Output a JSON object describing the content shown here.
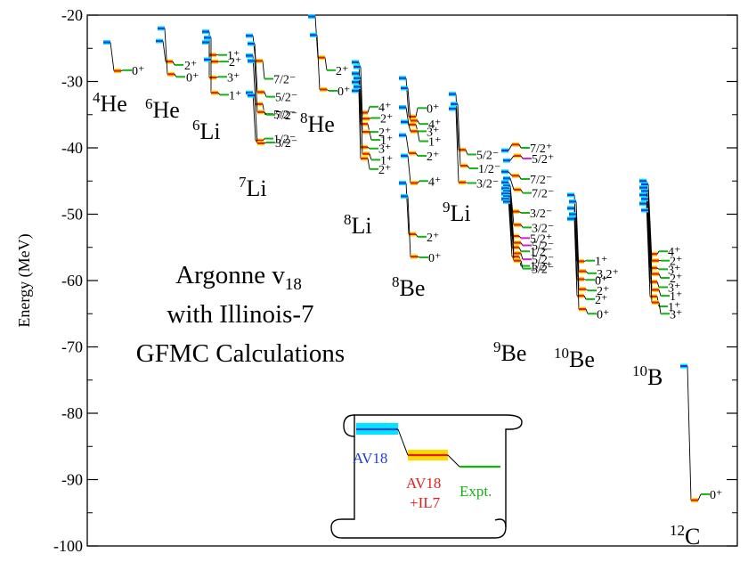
{
  "chart_data": {
    "type": "scatter",
    "title": "",
    "ylabel": "Energy (MeV)",
    "xlabel": "",
    "ylim": [
      -100,
      -20
    ],
    "yticks": [
      -20,
      -30,
      -40,
      -50,
      -60,
      -70,
      -80,
      -90,
      -100
    ],
    "ytick_labels": [
      "-20",
      "-30",
      "-40",
      "-50",
      "-60",
      "-70",
      "-80",
      "-90",
      "-100"
    ],
    "annotation": {
      "line1": "Argonne v",
      "line1_sub": "18",
      "line2": "with Illinois-7",
      "line3": "GFMC Calculations"
    },
    "legend": {
      "av18": "AV18",
      "av18il7_line1": "AV18",
      "av18il7_line2": "+IL7",
      "expt": "Expt."
    },
    "colors": {
      "av18": "#1f3fd8",
      "av18_band": "#00e5ff",
      "av18il7": "#e0201b",
      "av18il7_band": "#ffd800",
      "expt": "#13b313",
      "expt_alt": "#d21fd2",
      "connector": "#000000"
    },
    "nuclei": [
      {
        "name": "He",
        "A": "4",
        "slot": 0,
        "levels": [
          {
            "av18": -24.1,
            "il7": -28.4,
            "expt": -28.3,
            "label": "0⁺"
          }
        ]
      },
      {
        "name": "He",
        "A": "6",
        "slot": 1,
        "levels": [
          {
            "av18": -23.9,
            "il7": -27.0,
            "expt": -27.5,
            "label": "2⁺"
          },
          {
            "av18": -22.0,
            "il7": -28.9,
            "expt": -29.3,
            "label": "0⁺"
          }
        ]
      },
      {
        "name": "Li",
        "A": "6",
        "slot": 2,
        "levels": [
          {
            "av18": -22.5,
            "il7": -26.0,
            "expt": -26.0,
            "label": "1⁺"
          },
          {
            "av18": -23.4,
            "il7": -27.0,
            "expt": -27.0,
            "label": "2⁺"
          },
          {
            "av18": -24.1,
            "il7": -29.4,
            "expt": -29.3,
            "label": "3⁺"
          },
          {
            "av18": -26.7,
            "il7": -31.7,
            "expt": -32.0,
            "label": "1⁺"
          }
        ]
      },
      {
        "name": "Li",
        "A": "7",
        "slot": 3,
        "levels": [
          {
            "av18": -23.1,
            "il7": -26.9,
            "expt": -29.6,
            "label": "7/2⁻"
          },
          {
            "av18": -24.3,
            "il7": -31.6,
            "expt": -32.3,
            "label": "5/2⁻"
          },
          {
            "av18": -26.1,
            "il7": -33.4,
            "expt": -34.9,
            "label": "5/2⁻"
          },
          {
            "av18": -26.9,
            "il7": -34.6,
            "expt": -35.0,
            "label": "7/2⁻"
          },
          {
            "av18": -31.7,
            "il7": -38.9,
            "expt": -38.6,
            "label": "1/2⁻"
          },
          {
            "av18": -32.1,
            "il7": -39.3,
            "expt": -39.2,
            "label": "3/2⁻"
          }
        ]
      },
      {
        "name": "He",
        "A": "8",
        "slot": 4,
        "levels": [
          {
            "av18": -20.2,
            "il7": -26.4,
            "expt": -28.3,
            "label": "2⁺"
          },
          {
            "av18": -23.0,
            "il7": -31.2,
            "expt": -31.4,
            "label": "0⁺"
          }
        ]
      },
      {
        "name": "Li",
        "A": "8",
        "slot": 5,
        "levels": [
          {
            "av18": -27.1,
            "il7": -34.7,
            "expt": -33.8,
            "label": "4⁺"
          },
          {
            "av18": -27.8,
            "il7": -35.6,
            "expt": -35.5,
            "label": "2⁺"
          },
          {
            "av18": -28.8,
            "il7": -36.4,
            "expt": -37.6,
            "label": "2⁺"
          },
          {
            "av18": -29.5,
            "il7": -37.6,
            "expt": -38.8,
            "label": "1⁺"
          },
          {
            "av18": -30.1,
            "il7": -39.9,
            "expt": -40.1,
            "label": "3⁺"
          },
          {
            "av18": -30.8,
            "il7": -40.9,
            "expt": -41.8,
            "label": "1⁺"
          },
          {
            "av18": -31.4,
            "il7": -41.6,
            "expt": -43.2,
            "label": "2⁺"
          }
        ]
      },
      {
        "name": "Be",
        "A": "8",
        "slot": 6,
        "levels": [
          {
            "av18": -29.5,
            "il7": -35.3,
            "expt": -34.0,
            "label": "0⁺"
          },
          {
            "av18": -31.0,
            "il7": -35.9,
            "expt": -36.4,
            "label": "4⁺"
          },
          {
            "av18": -33.9,
            "il7": -36.5,
            "expt": -37.5,
            "label": "3⁺"
          },
          {
            "av18": -36.1,
            "il7": -37.5,
            "expt": -39.0,
            "label": "1⁺"
          },
          {
            "av18": -38.1,
            "il7": -40.8,
            "expt": -41.2,
            "label": "2⁺"
          },
          {
            "av18": -41.2,
            "il7": -45.3,
            "expt": -45.0,
            "label": "4⁺"
          },
          {
            "av18": -45.3,
            "il7": -53.0,
            "expt": -53.4,
            "label": "2⁺"
          },
          {
            "av18": -47.3,
            "il7": -56.4,
            "expt": -56.5,
            "label": "0⁺"
          }
        ]
      },
      {
        "name": "Li",
        "A": "9",
        "slot": 7,
        "levels": [
          {
            "av18": -31.9,
            "il7": -40.3,
            "expt": -41.0,
            "label": "5/2⁻"
          },
          {
            "av18": -33.4,
            "il7": -42.7,
            "expt": -43.1,
            "label": "1/2⁻"
          },
          {
            "av18": -34.1,
            "il7": -45.2,
            "expt": -45.3,
            "label": "3/2⁻"
          }
        ]
      },
      {
        "name": "Be",
        "A": "9",
        "slot": 8,
        "levels": [
          {
            "av18": -40.4,
            "il7": -39.5,
            "expt": -40.0,
            "label": "7/2⁺"
          },
          {
            "av18": -41.9,
            "il7": -41.2,
            "expt": -41.6,
            "label": "5/2⁺"
          },
          {
            "av18": -43.6,
            "il7": -44.2,
            "expt": -44.7,
            "label": "7/2⁻"
          },
          {
            "av18": -44.6,
            "il7": -46.3,
            "expt": -46.8,
            "label": "7/2⁻"
          },
          {
            "av18": -45.2,
            "il7": -49.6,
            "expt": -49.8,
            "label": "3/2⁻"
          },
          {
            "av18": -45.7,
            "il7": -51.6,
            "expt": -52.0,
            "label": "3/2⁻"
          },
          {
            "av18": -46.1,
            "il7": -53.3,
            "expt": -53.6,
            "label": "5/2⁺"
          },
          {
            "av18": -46.5,
            "il7": -54.3,
            "expt": -54.7,
            "label": "5/2⁻"
          },
          {
            "av18": -46.9,
            "il7": -55.0,
            "expt": -55.6,
            "label": "1/2⁻"
          },
          {
            "av18": -47.3,
            "il7": -55.9,
            "expt": -56.8,
            "label": "5/2⁻"
          },
          {
            "av18": -47.7,
            "il7": -56.4,
            "expt": -57.8,
            "label": "1/2⁺"
          },
          {
            "av18": -48.1,
            "il7": -57.0,
            "expt": -58.2,
            "label": "3/2⁻"
          }
        ]
      },
      {
        "name": "Be",
        "A": "10",
        "slot": 9,
        "levels": [
          {
            "av18": -47.1,
            "il7": -57.1,
            "expt": -57.0,
            "label": "1⁺"
          },
          {
            "av18": -48.1,
            "il7": -58.6,
            "expt": -58.9,
            "label": "3,2⁺"
          },
          {
            "av18": -49.1,
            "il7": -59.8,
            "expt": -59.9,
            "label": "0⁺"
          },
          {
            "av18": -50.2,
            "il7": -61.3,
            "expt": -61.5,
            "label": "2⁺"
          },
          {
            "av18": -50.7,
            "il7": -62.3,
            "expt": -62.8,
            "label": "2⁺"
          },
          {
            "av18": -50.0,
            "il7": -64.3,
            "expt": -65.0,
            "label": "0⁺"
          }
        ]
      },
      {
        "name": "B",
        "A": "10",
        "slot": 10,
        "levels": [
          {
            "av18": -45.0,
            "il7": -56.0,
            "expt": -55.6,
            "label": "4⁺"
          },
          {
            "av18": -45.5,
            "il7": -57.0,
            "expt": -57.0,
            "label": "2⁺"
          },
          {
            "av18": -46.0,
            "il7": -58.1,
            "expt": -58.3,
            "label": "3⁺"
          },
          {
            "av18": -46.5,
            "il7": -59.0,
            "expt": -59.6,
            "label": "2⁺"
          },
          {
            "av18": -47.1,
            "il7": -60.2,
            "expt": -61.0,
            "label": "3⁺"
          },
          {
            "av18": -47.7,
            "il7": -61.4,
            "expt": -62.3,
            "label": "1⁺"
          },
          {
            "av18": -48.4,
            "il7": -62.4,
            "expt": -63.9,
            "label": "1⁺"
          },
          {
            "av18": -49.4,
            "il7": -63.3,
            "expt": -65.0,
            "label": "3⁺"
          }
        ]
      },
      {
        "name": "C",
        "A": "12",
        "slot": 11,
        "levels": [
          {
            "av18": -72.9,
            "il7": -93.1,
            "expt": -92.2,
            "label": "0⁺"
          }
        ]
      }
    ]
  }
}
